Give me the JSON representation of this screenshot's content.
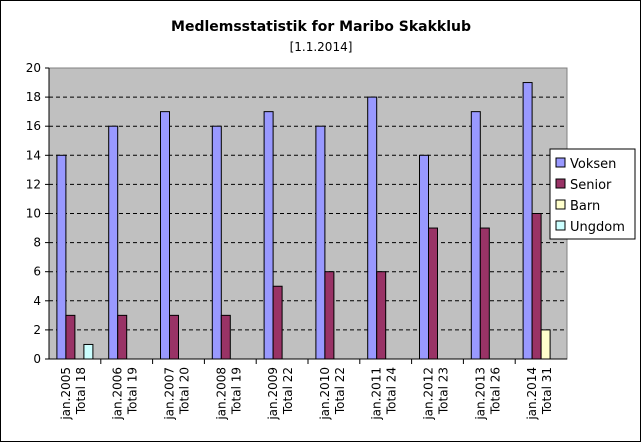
{
  "chart_data": {
    "type": "bar",
    "title": "Medlemsstatistik for Maribo Skakklub",
    "subtitle": "[1.1.2014]",
    "categories": [
      [
        "jan.2005",
        "Total 18"
      ],
      [
        "jan.2006",
        "Total 19"
      ],
      [
        "jan.2007",
        "Total 20"
      ],
      [
        "jan.2008",
        "Total 19"
      ],
      [
        "jan.2009",
        "Total 22"
      ],
      [
        "jan.2010",
        "Total 22"
      ],
      [
        "jan.2011",
        "Total 24"
      ],
      [
        "jan.2012",
        "Total 23"
      ],
      [
        "jan.2013",
        "Total 26"
      ],
      [
        "jan.2014",
        "Total 31"
      ]
    ],
    "series": [
      {
        "name": "Voksen",
        "color": "#9999ff",
        "values": [
          14,
          16,
          17,
          16,
          17,
          16,
          18,
          14,
          17,
          19
        ]
      },
      {
        "name": "Senior",
        "color": "#993366",
        "values": [
          3,
          3,
          3,
          3,
          5,
          6,
          6,
          9,
          9,
          10
        ]
      },
      {
        "name": "Barn",
        "color": "#ffffcc",
        "values": [
          0,
          0,
          0,
          0,
          0,
          0,
          0,
          0,
          0,
          2
        ]
      },
      {
        "name": "Ungdom",
        "color": "#ccffff",
        "values": [
          1,
          0,
          0,
          0,
          0,
          0,
          0,
          0,
          0,
          0
        ]
      }
    ],
    "ylim": [
      0,
      20
    ],
    "yticks": [
      0,
      2,
      4,
      6,
      8,
      10,
      12,
      14,
      16,
      18,
      20
    ],
    "grid": "horizontal dashed",
    "plot_background": "#c0c0c0",
    "legend_position": "right"
  }
}
